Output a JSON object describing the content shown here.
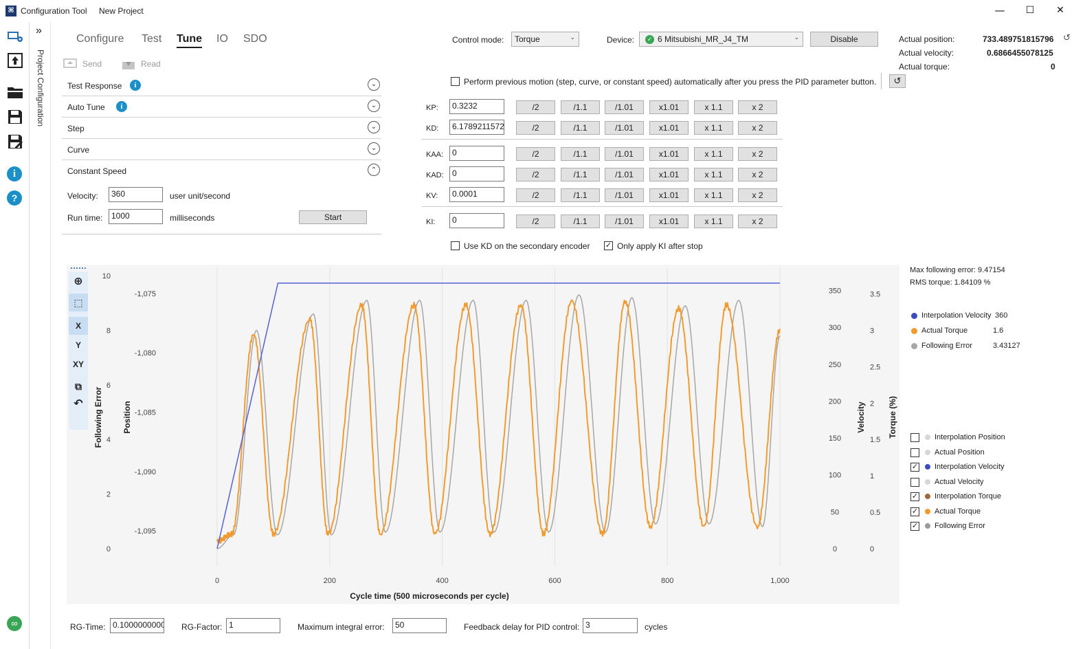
{
  "window": {
    "app_title": "Configuration Tool",
    "project_name": "New Project",
    "minimize": "—",
    "maximize": "☐",
    "close": "✕"
  },
  "sidebar": {
    "collapse_glyph": "»",
    "project_configuration": "Project Configuration"
  },
  "tabs": [
    "Configure",
    "Test",
    "Tune",
    "IO",
    "SDO"
  ],
  "actions": {
    "send": "Send",
    "read": "Read"
  },
  "accordion": [
    {
      "label": "Test Response",
      "info": true,
      "expanded": false
    },
    {
      "label": "Auto Tune",
      "info": true,
      "expanded": false
    },
    {
      "label": "Step",
      "info": false,
      "expanded": false
    },
    {
      "label": "Curve",
      "info": false,
      "expanded": false
    },
    {
      "label": "Constant Speed",
      "info": false,
      "expanded": true
    }
  ],
  "constant_speed": {
    "velocity_label": "Velocity:",
    "velocity_value": "360",
    "velocity_unit": "user unit/second",
    "runtime_label": "Run time:",
    "runtime_value": "1000",
    "runtime_unit": "milliseconds",
    "start": "Start"
  },
  "control": {
    "mode_label": "Control mode:",
    "mode_value": "Torque",
    "device_label": "Device:",
    "device_value": "6 Mitsubishi_MR_J4_TM",
    "disable": "Disable"
  },
  "actuals": {
    "position_label": "Actual position:",
    "position_value": "733.489751815796",
    "velocity_label": "Actual velocity:",
    "velocity_value": "0.6866455078125",
    "torque_label": "Actual torque:",
    "torque_value": "0"
  },
  "auto_motion_text": "Perform previous motion (step, curve, or constant speed) automatically after you press the PID parameter button.",
  "pid_buttons": [
    "/2",
    "/1.1",
    "/1.01",
    "x1.01",
    "x 1.1",
    "x 2"
  ],
  "pid": [
    {
      "label": "KP:",
      "value": "0.3232"
    },
    {
      "label": "KD:",
      "value": "6.1789211572"
    },
    {
      "label": "KAA:",
      "value": "0"
    },
    {
      "label": "KAD:",
      "value": "0"
    },
    {
      "label": "KV:",
      "value": "0.0001"
    },
    {
      "label": "KI:",
      "value": "0"
    }
  ],
  "options": {
    "use_kd": "Use KD on the secondary encoder",
    "use_kd_checked": false,
    "only_ki": "Only apply KI after stop",
    "only_ki_checked": true
  },
  "stats": {
    "max_fe": "Max following error:  9.47154",
    "rms_torque": "RMS torque:  1.84109   %"
  },
  "live_legend": [
    {
      "name": "Interpolation Velocity",
      "value": "360",
      "color": "#3b4cc0"
    },
    {
      "name": "Actual Torque",
      "value": "1.6",
      "color": "#f39a2c"
    },
    {
      "name": "Following Error",
      "value": "3.43127",
      "color": "#a6a6a6"
    }
  ],
  "series_toggles": [
    {
      "name": "Interpolation Position",
      "checked": false,
      "color": "#d6d6d6"
    },
    {
      "name": "Actual Position",
      "checked": false,
      "color": "#d6d6d6"
    },
    {
      "name": "Interpolation Velocity",
      "checked": true,
      "color": "#3b4cc0"
    },
    {
      "name": "Actual Velocity",
      "checked": false,
      "color": "#d6d6d6"
    },
    {
      "name": "Interpolation Torque",
      "checked": true,
      "color": "#a0693a"
    },
    {
      "name": "Actual Torque",
      "checked": true,
      "color": "#f39a2c"
    },
    {
      "name": "Following Error",
      "checked": true,
      "color": "#9a9a9a"
    }
  ],
  "plot_toolbar": {
    "x": "X",
    "y": "Y",
    "xy": "XY"
  },
  "chart_data": {
    "type": "line",
    "xlabel": "Cycle time (500 microseconds per cycle)",
    "x_ticks": [
      "0",
      "200",
      "400",
      "600",
      "800",
      "1,000"
    ],
    "xlim": [
      0,
      1000
    ],
    "axes": {
      "following_error": {
        "label": "Following Error",
        "ticks": [
          "0",
          "2",
          "4",
          "6",
          "8",
          "10"
        ],
        "lim": [
          0,
          10
        ]
      },
      "position": {
        "label": "Position",
        "ticks": [
          "-1,095",
          "-1,090",
          "-1,085",
          "-1,080",
          "-1,075"
        ],
        "lim": [
          -1096.5,
          -1073.5
        ]
      },
      "velocity": {
        "label": "Velocity",
        "ticks": [
          "0",
          "50",
          "100",
          "150",
          "200",
          "250",
          "300",
          "350"
        ],
        "lim": [
          0,
          370
        ]
      },
      "torque": {
        "label": "Torque (%)",
        "ticks": [
          "0",
          "0.5",
          "1",
          "1.5",
          "2",
          "2.5",
          "3",
          "3.5"
        ],
        "lim": [
          0,
          3.75
        ]
      }
    },
    "series": [
      {
        "name": "Interpolation Velocity",
        "axis": "velocity",
        "color": "#5560d8",
        "x": [
          0,
          108,
          1000
        ],
        "y": [
          0,
          360,
          360
        ]
      },
      {
        "name": "Actual Torque",
        "axis": "torque",
        "color": "#f39a2c",
        "x": [
          0,
          26,
          65,
          100,
          165,
          197,
          257,
          290,
          350,
          387,
          442,
          485,
          540,
          580,
          630,
          685,
          725,
          770,
          820,
          865,
          905,
          960,
          1000
        ],
        "y": [
          0.1,
          0.2,
          2.95,
          0.2,
          3.15,
          0.2,
          3.35,
          0.2,
          3.35,
          0.2,
          3.35,
          0.2,
          3.35,
          0.2,
          3.4,
          0.2,
          3.4,
          0.3,
          3.3,
          0.3,
          3.35,
          0.3,
          3.0
        ]
      },
      {
        "name": "Following Error",
        "axis": "following_error",
        "color": "#a6a6a6",
        "x": [
          0,
          29,
          70,
          107,
          171,
          203,
          266,
          299,
          360,
          396,
          455,
          492,
          549,
          589,
          643,
          690,
          737,
          779,
          832,
          874,
          927,
          969,
          1000
        ],
        "y": [
          0,
          0.5,
          8.0,
          0.5,
          8.6,
          0.5,
          9.1,
          0.6,
          9.1,
          0.6,
          9.1,
          0.6,
          9.1,
          0.6,
          9.3,
          0.6,
          9.2,
          0.9,
          8.9,
          0.9,
          9.1,
          0.8,
          7.8
        ]
      }
    ]
  },
  "bottom": {
    "rg_time_label": "RG-Time:",
    "rg_time_value": "0.1000000000",
    "rg_factor_label": "RG-Factor:",
    "rg_factor_value": "1",
    "max_int_label": "Maximum integral error:",
    "max_int_value": "50",
    "fb_delay_label": "Feedback delay for PID control:",
    "fb_delay_value": "3",
    "fb_delay_unit": "cycles"
  }
}
